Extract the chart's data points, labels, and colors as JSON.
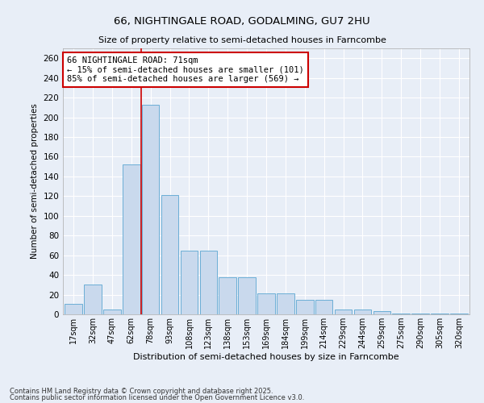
{
  "title1": "66, NIGHTINGALE ROAD, GODALMING, GU7 2HU",
  "title2": "Size of property relative to semi-detached houses in Farncombe",
  "xlabel": "Distribution of semi-detached houses by size in Farncombe",
  "ylabel": "Number of semi-detached properties",
  "categories": [
    "17sqm",
    "32sqm",
    "47sqm",
    "62sqm",
    "78sqm",
    "93sqm",
    "108sqm",
    "123sqm",
    "138sqm",
    "153sqm",
    "169sqm",
    "184sqm",
    "199sqm",
    "214sqm",
    "229sqm",
    "244sqm",
    "259sqm",
    "275sqm",
    "290sqm",
    "305sqm",
    "320sqm"
  ],
  "values": [
    11,
    30,
    5,
    152,
    213,
    121,
    65,
    65,
    38,
    38,
    21,
    21,
    15,
    15,
    5,
    5,
    3,
    1,
    1,
    1,
    1
  ],
  "bar_color": "#c9d9ed",
  "bar_edge_color": "#6baed6",
  "background_color": "#e8eef7",
  "grid_color": "#ffffff",
  "annotation_text": "66 NIGHTINGALE ROAD: 71sqm\n← 15% of semi-detached houses are smaller (101)\n85% of semi-detached houses are larger (569) →",
  "annotation_box_color": "#ffffff",
  "annotation_box_edge": "#cc0000",
  "vline_color": "#cc0000",
  "ylim": [
    0,
    270
  ],
  "yticks": [
    0,
    20,
    40,
    60,
    80,
    100,
    120,
    140,
    160,
    180,
    200,
    220,
    240,
    260
  ],
  "footer1": "Contains HM Land Registry data © Crown copyright and database right 2025.",
  "footer2": "Contains public sector information licensed under the Open Government Licence v3.0."
}
